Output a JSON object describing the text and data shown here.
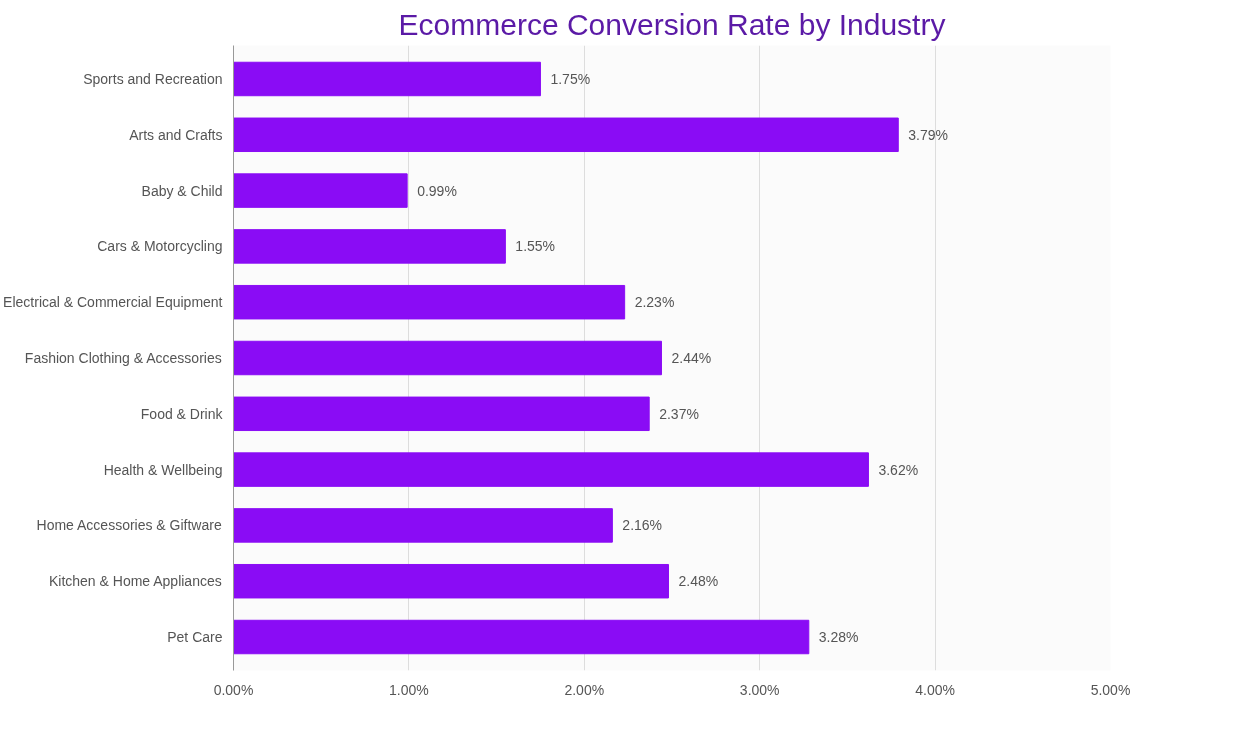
{
  "chart_data": {
    "type": "bar",
    "orientation": "horizontal",
    "title": "Ecommerce Conversion Rate by Industry",
    "categories": [
      "Sports and Recreation",
      "Arts and Crafts",
      "Baby & Child",
      "Cars & Motorcycling",
      "Electrical & Commercial Equipment",
      "Fashion Clothing & Accessories",
      "Food & Drink",
      "Health & Wellbeing",
      "Home Accessories & Giftware",
      "Kitchen & Home Appliances",
      "Pet Care"
    ],
    "values": [
      1.75,
      3.79,
      0.99,
      1.55,
      2.23,
      2.44,
      2.37,
      3.62,
      2.16,
      2.48,
      3.28
    ],
    "value_labels": [
      "1.75%",
      "3.79%",
      "0.99%",
      "1.55%",
      "2.23%",
      "2.44%",
      "2.37%",
      "3.62%",
      "2.16%",
      "2.48%",
      "3.28%"
    ],
    "color": "#8a0cf5",
    "xlim": [
      0,
      5
    ],
    "xticks": [
      {
        "value": 0,
        "label": "0.00%"
      },
      {
        "value": 1,
        "label": "1.00%"
      },
      {
        "value": 2,
        "label": "2.00%"
      },
      {
        "value": 3,
        "label": "3.00%"
      },
      {
        "value": 4,
        "label": "4.00%"
      },
      {
        "value": 5,
        "label": "5.00%"
      }
    ],
    "grid": "x"
  }
}
